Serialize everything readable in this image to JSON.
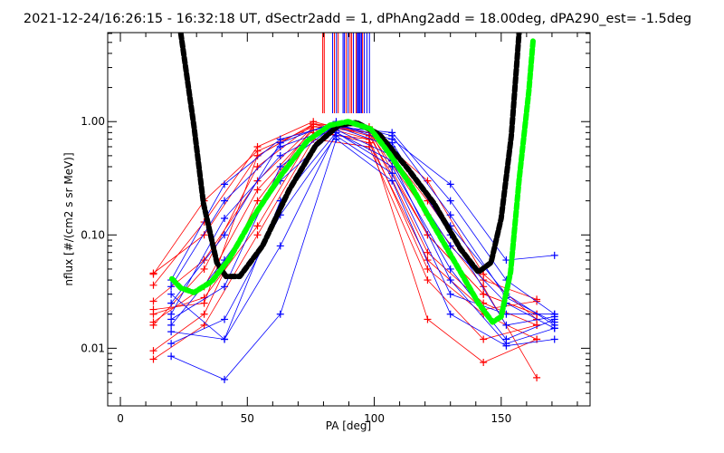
{
  "chart_data": {
    "type": "line",
    "title": "2021-12-24/16:26:15 - 16:32:18 UT, dSectr2add = 1, dPhAng2add = 18.00deg, dPA290_est=  -1.5deg",
    "xlabel": "PA [deg]",
    "ylabel": "nflux [#/(cm2 s sr MeV)]",
    "xlim": [
      -5,
      185
    ],
    "ylim": [
      0.0031,
      6.1
    ],
    "yscale": "log",
    "xticks": [
      0,
      50,
      100,
      150
    ],
    "xtick_labels": [
      "0",
      "50",
      "100",
      "150"
    ],
    "yticks": [
      0.01,
      0.1,
      1.0
    ],
    "ytick_labels": [
      "0.01",
      "0.10",
      "1.00"
    ],
    "colors": {
      "red": "#ff0000",
      "blue": "#0000ff",
      "green": "#00ff00",
      "black": "#000000"
    },
    "vertical_markers": [
      {
        "x": 79.7,
        "color": "#ff0000"
      },
      {
        "x": 80.3,
        "color": "#ff0000"
      },
      {
        "x": 83.6,
        "color": "#0000ff"
      },
      {
        "x": 84.3,
        "color": "#ff0000"
      },
      {
        "x": 85.1,
        "color": "#0000ff"
      },
      {
        "x": 85.8,
        "color": "#ff0000"
      },
      {
        "x": 87.7,
        "color": "#0000ff"
      },
      {
        "x": 88.2,
        "color": "#0000ff"
      },
      {
        "x": 88.9,
        "color": "#ff0000"
      },
      {
        "x": 89.7,
        "color": "#0000ff"
      },
      {
        "x": 90.5,
        "color": "#ff0000"
      },
      {
        "x": 91.1,
        "color": "#ff0000"
      },
      {
        "x": 91.8,
        "color": "#0000ff"
      },
      {
        "x": 92.9,
        "color": "#ff0000"
      },
      {
        "x": 93.3,
        "color": "#0000ff"
      },
      {
        "x": 93.7,
        "color": "#0000ff"
      },
      {
        "x": 94.1,
        "color": "#0000ff"
      },
      {
        "x": 94.5,
        "color": "#0000ff"
      },
      {
        "x": 95.0,
        "color": "#0000ff"
      },
      {
        "x": 95.4,
        "color": "#ff0000"
      },
      {
        "x": 96.1,
        "color": "#0000ff"
      },
      {
        "x": 97.1,
        "color": "#0000ff"
      },
      {
        "x": 98.1,
        "color": "#0000ff"
      }
    ],
    "series": [
      {
        "name": "red-1",
        "color": "#ff0000",
        "x": [
          13,
          33,
          54,
          76,
          98,
          121,
          143,
          164
        ],
        "y": [
          0.046,
          0.1,
          0.5,
          0.95,
          0.9,
          0.2,
          0.04,
          0.027
        ]
      },
      {
        "name": "red-2",
        "color": "#ff0000",
        "x": [
          13,
          33,
          54,
          76,
          98,
          121,
          143,
          164
        ],
        "y": [
          0.026,
          0.06,
          0.3,
          0.9,
          0.85,
          0.1,
          0.03,
          0.02
        ]
      },
      {
        "name": "red-3",
        "color": "#ff0000",
        "x": [
          13,
          33,
          54,
          76,
          98,
          121,
          143,
          164
        ],
        "y": [
          0.016,
          0.05,
          0.4,
          0.95,
          0.8,
          0.07,
          0.025,
          0.016
        ]
      },
      {
        "name": "red-4",
        "color": "#ff0000",
        "x": [
          13,
          33,
          54,
          76,
          98,
          121,
          143,
          164
        ],
        "y": [
          0.02,
          0.028,
          0.12,
          0.8,
          0.7,
          0.05,
          0.02,
          0.012
        ]
      },
      {
        "name": "red-5",
        "color": "#ff0000",
        "x": [
          13,
          33,
          54,
          76,
          98,
          121,
          143,
          164
        ],
        "y": [
          0.0095,
          0.02,
          0.2,
          0.9,
          0.8,
          0.15,
          0.035,
          0.0055
        ]
      },
      {
        "name": "red-6",
        "color": "#ff0000",
        "x": [
          13,
          33,
          54,
          76,
          98,
          121,
          143,
          164
        ],
        "y": [
          0.008,
          0.016,
          0.1,
          0.7,
          0.6,
          0.04,
          0.012,
          0.016
        ]
      },
      {
        "name": "red-7",
        "color": "#ff0000",
        "x": [
          13,
          33,
          54,
          76,
          98,
          121,
          143,
          164
        ],
        "y": [
          0.036,
          0.13,
          0.6,
          1.0,
          0.75,
          0.1,
          0.03,
          0.02
        ]
      },
      {
        "name": "red-8",
        "color": "#ff0000",
        "x": [
          13,
          33,
          54,
          76,
          98,
          121,
          143,
          164
        ],
        "y": [
          0.022,
          0.025,
          0.5,
          0.95,
          0.7,
          0.018,
          0.0075,
          0.012
        ]
      },
      {
        "name": "red-9",
        "color": "#ff0000",
        "x": [
          13,
          33,
          54,
          76,
          98,
          121,
          143,
          164
        ],
        "y": [
          0.017,
          0.035,
          0.25,
          0.85,
          0.65,
          0.06,
          0.022,
          0.026
        ]
      },
      {
        "name": "red-10",
        "color": "#ff0000",
        "x": [
          13,
          33,
          54,
          76,
          98,
          121,
          143,
          164
        ],
        "y": [
          0.045,
          0.2,
          0.55,
          0.9,
          0.85,
          0.3,
          0.045,
          0.018
        ]
      },
      {
        "name": "blue-1",
        "color": "#0000ff",
        "x": [
          20,
          41,
          63,
          85,
          107,
          130,
          152,
          171
        ],
        "y": [
          0.04,
          0.28,
          0.7,
          0.95,
          0.7,
          0.28,
          0.06,
          0.066
        ]
      },
      {
        "name": "blue-2",
        "color": "#0000ff",
        "x": [
          20,
          41,
          63,
          85,
          107,
          130,
          152,
          171
        ],
        "y": [
          0.035,
          0.2,
          0.6,
          0.9,
          0.8,
          0.2,
          0.04,
          0.02
        ]
      },
      {
        "name": "blue-3",
        "color": "#0000ff",
        "x": [
          20,
          41,
          63,
          85,
          107,
          130,
          152,
          171
        ],
        "y": [
          0.02,
          0.14,
          0.5,
          0.9,
          0.6,
          0.12,
          0.03,
          0.016
        ]
      },
      {
        "name": "blue-4",
        "color": "#0000ff",
        "x": [
          20,
          41,
          63,
          85,
          107,
          130,
          152,
          171
        ],
        "y": [
          0.016,
          0.06,
          0.3,
          0.85,
          0.5,
          0.08,
          0.025,
          0.015
        ]
      },
      {
        "name": "blue-5",
        "color": "#0000ff",
        "x": [
          20,
          41,
          63,
          85,
          107,
          130,
          152,
          171
        ],
        "y": [
          0.03,
          0.012,
          0.2,
          0.8,
          0.4,
          0.05,
          0.012,
          0.018
        ]
      },
      {
        "name": "blue-6",
        "color": "#0000ff",
        "x": [
          20,
          41,
          63,
          85,
          107,
          130,
          152,
          171
        ],
        "y": [
          0.0085,
          0.0053,
          0.02,
          0.7,
          0.3,
          0.02,
          0.0105,
          0.012
        ]
      },
      {
        "name": "blue-7",
        "color": "#0000ff",
        "x": [
          20,
          41,
          63,
          85,
          107,
          130,
          152,
          171
        ],
        "y": [
          0.011,
          0.018,
          0.15,
          0.75,
          0.35,
          0.03,
          0.02,
          0.02
        ]
      },
      {
        "name": "blue-8",
        "color": "#0000ff",
        "x": [
          20,
          41,
          63,
          85,
          107,
          130,
          152,
          171
        ],
        "y": [
          0.018,
          0.035,
          0.4,
          0.95,
          0.65,
          0.1,
          0.016,
          0.019
        ]
      },
      {
        "name": "blue-9",
        "color": "#0000ff",
        "x": [
          20,
          41,
          63,
          85,
          107,
          130,
          152,
          171
        ],
        "y": [
          0.025,
          0.1,
          0.65,
          1.0,
          0.75,
          0.15,
          0.028,
          0.017
        ]
      },
      {
        "name": "blue-10",
        "color": "#0000ff",
        "x": [
          20,
          41,
          63,
          85,
          107,
          130,
          152,
          171
        ],
        "y": [
          0.014,
          0.012,
          0.08,
          0.8,
          0.45,
          0.04,
          0.011,
          0.015
        ]
      }
    ],
    "fit_curves": [
      {
        "name": "black-fit",
        "color": "#000000",
        "x": [
          23.8,
          29,
          32.7,
          38,
          41.6,
          47,
          56,
          66.5,
          77,
          86,
          93,
          102,
          113,
          123.5,
          134,
          141,
          146,
          150,
          154,
          157
        ],
        "y": [
          6.0,
          0.9,
          0.19,
          0.057,
          0.043,
          0.043,
          0.08,
          0.25,
          0.62,
          0.93,
          0.98,
          0.77,
          0.39,
          0.19,
          0.075,
          0.047,
          0.057,
          0.14,
          0.75,
          6.0
        ]
      },
      {
        "name": "green-fit",
        "color": "#00ff00",
        "x": [
          20.3,
          23.8,
          29,
          36,
          43,
          52,
          63,
          73.7,
          82.6,
          89.7,
          98.6,
          105.7,
          114.6,
          123.5,
          134,
          141,
          146.6,
          150,
          153.7,
          157,
          160.9,
          162.6
        ],
        "y": [
          0.041,
          0.034,
          0.031,
          0.039,
          0.062,
          0.14,
          0.33,
          0.68,
          0.93,
          1.0,
          0.86,
          0.53,
          0.27,
          0.12,
          0.047,
          0.025,
          0.017,
          0.019,
          0.047,
          0.3,
          1.87,
          5.4
        ]
      }
    ]
  }
}
